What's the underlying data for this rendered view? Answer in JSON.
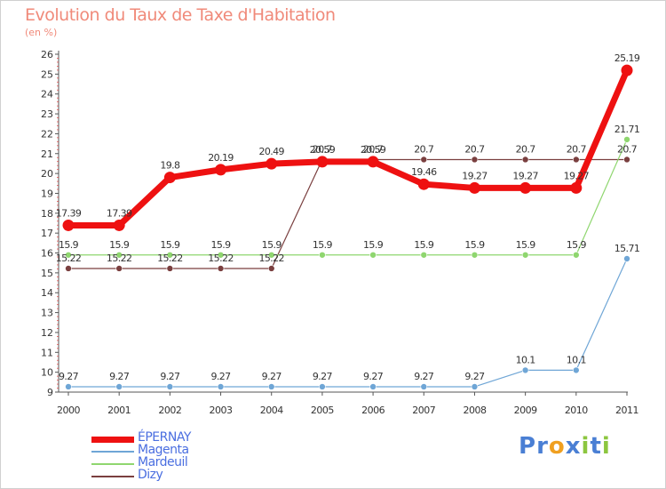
{
  "chart_data": {
    "type": "line",
    "title": "Evolution du Taux de Taxe d'Habitation",
    "subtitle": "(en %)",
    "xlabel": "",
    "ylabel": "",
    "x": [
      "2000",
      "2001",
      "2002",
      "2003",
      "2004",
      "2005",
      "2006",
      "2007",
      "2008",
      "2009",
      "2010",
      "2011"
    ],
    "ylim": [
      9,
      26
    ],
    "yticks": [
      9,
      10,
      11,
      12,
      13,
      14,
      15,
      16,
      17,
      18,
      19,
      20,
      21,
      22,
      23,
      24,
      25,
      26
    ],
    "grid": false,
    "legend_position": "bottom-left",
    "series": [
      {
        "name": "Dizy",
        "color": "#7a3f3f",
        "width": 1.2,
        "marker": 3.5,
        "values": [
          15.22,
          15.22,
          15.22,
          15.22,
          15.22,
          20.7,
          20.7,
          20.7,
          20.7,
          20.7,
          20.7,
          20.7
        ],
        "labels": [
          "15.22",
          "15.22",
          "15.22",
          "15.22",
          "15.22",
          "20.7",
          "20.7",
          "20.7",
          "20.7",
          "20.7",
          "20.7",
          "20.7"
        ]
      },
      {
        "name": "Mardeuil",
        "color": "#8fd66f",
        "width": 1.2,
        "marker": 3.5,
        "values": [
          15.9,
          15.9,
          15.9,
          15.9,
          15.9,
          15.9,
          15.9,
          15.9,
          15.9,
          15.9,
          15.9,
          21.71
        ],
        "labels": [
          "15.9",
          "15.9",
          "15.9",
          "15.9",
          "15.9",
          "15.9",
          "15.9",
          "15.9",
          "15.9",
          "15.9",
          "15.9",
          "21.71"
        ]
      },
      {
        "name": "Magenta",
        "color": "#6fa6d6",
        "width": 1.2,
        "marker": 3.5,
        "values": [
          9.27,
          9.27,
          9.27,
          9.27,
          9.27,
          9.27,
          9.27,
          9.27,
          9.27,
          10.1,
          10.1,
          15.71
        ],
        "labels": [
          "9.27",
          "9.27",
          "9.27",
          "9.27",
          "9.27",
          "9.27",
          "9.27",
          "9.27",
          "9.27",
          "10.1",
          "10.1",
          "15.71"
        ]
      },
      {
        "name": "ÉPERNAY",
        "color": "#ee1111",
        "width": 7,
        "marker": 6.5,
        "values": [
          17.39,
          17.39,
          19.8,
          20.19,
          20.49,
          20.59,
          20.59,
          19.46,
          19.27,
          19.27,
          19.27,
          25.19
        ],
        "labels": [
          "17.39",
          "17.39",
          "19.8",
          "20.19",
          "20.49",
          "20.59",
          "20.59",
          "19.46",
          "19.27",
          "19.27",
          "19.27",
          "25.19"
        ]
      }
    ]
  },
  "legend": {
    "items": [
      {
        "label": "ÉPERNAY",
        "color": "#ee1111",
        "width": 7
      },
      {
        "label": "Magenta",
        "color": "#6fa6d6",
        "width": 2
      },
      {
        "label": "Mardeuil",
        "color": "#8fd66f",
        "width": 2
      },
      {
        "label": "Dizy",
        "color": "#7a3f3f",
        "width": 2
      }
    ]
  },
  "brand": {
    "letters": [
      {
        "ch": "P",
        "color": "#4a7fd4"
      },
      {
        "ch": "r",
        "color": "#4a7fd4"
      },
      {
        "ch": "o",
        "color": "#f0a020"
      },
      {
        "ch": "x",
        "color": "#4a7fd4"
      },
      {
        "ch": "i",
        "color": "#8cc63f"
      },
      {
        "ch": "t",
        "color": "#4a7fd4"
      },
      {
        "ch": "i",
        "color": "#8cc63f"
      }
    ]
  }
}
